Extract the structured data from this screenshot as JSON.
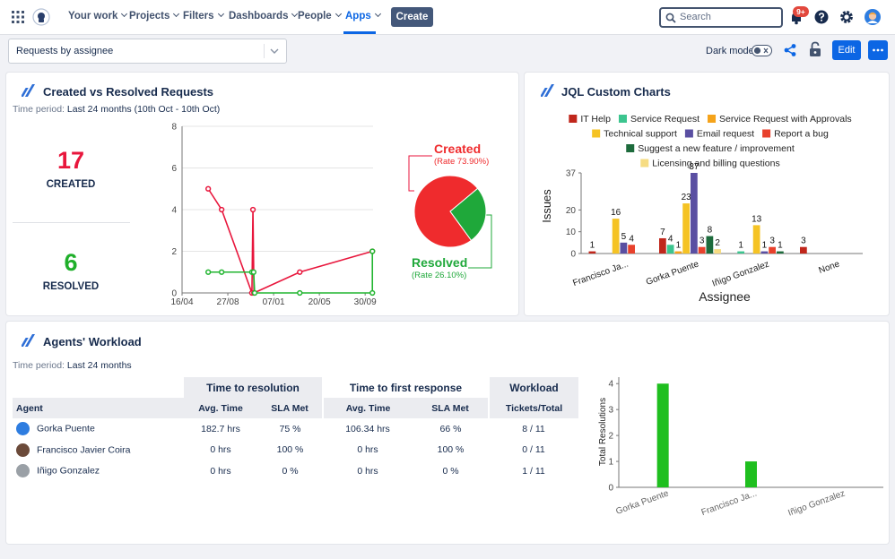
{
  "nav": {
    "items": [
      "Your work",
      "Projects",
      "Filters",
      "Dashboards",
      "People",
      "Apps"
    ],
    "create": "Create",
    "search": "Search",
    "badge": "9+"
  },
  "toolbar": {
    "dashboard": "Requests by assignee",
    "dark_mode": "Dark mode",
    "edit": "Edit"
  },
  "panels": [
    {
      "title": "Created vs Resolved Requests",
      "period_label": "Time period:",
      "period": "Last 24 months (10th Oct - 10th Oct)",
      "stats": [
        {
          "value": 17,
          "label": "CREATED"
        },
        {
          "value": 6,
          "label": "RESOLVED"
        }
      ]
    },
    {
      "title": "JQL Custom Charts"
    },
    {
      "title": "Agents' Workload",
      "period_label": "Time period:",
      "period": "Last 24 months"
    }
  ],
  "table": {
    "groups": [
      "Time to resolution",
      "Time to first response",
      "Workload"
    ],
    "header": [
      "Agent",
      "Avg. Time",
      "SLA Met",
      "Avg. Time",
      "SLA Met",
      "Tickets/Total"
    ],
    "rows": [
      [
        "Gorka Puente",
        "182.7 hrs",
        "75 %",
        "106.34 hrs",
        "66 %",
        "8 / 11"
      ],
      [
        "Francisco Javier Coira",
        "0 hrs",
        "100 %",
        "0 hrs",
        "100 %",
        "0 / 11"
      ],
      [
        "Iñigo Gonzalez",
        "0 hrs",
        "0 %",
        "0 hrs",
        "0 %",
        "1 / 11"
      ]
    ]
  },
  "chart_data": [
    {
      "type": "line",
      "xlim": [
        0,
        555
      ],
      "xticks": [
        {
          "value": 0,
          "label": "16/04"
        },
        {
          "value": 133,
          "label": "27/08"
        },
        {
          "value": 266,
          "label": "07/01"
        },
        {
          "value": 399,
          "label": "20/05"
        },
        {
          "value": 532,
          "label": "30/09"
        }
      ],
      "ylim": [
        0,
        8
      ],
      "yticks": [
        0,
        2,
        4,
        6,
        8
      ],
      "grid": true,
      "series": [
        {
          "color": "#e8163c",
          "x": [
            76,
            115,
            203,
            206,
            209,
            342,
            553
          ],
          "values": [
            5,
            4,
            0,
            4,
            0,
            1,
            2
          ]
        },
        {
          "color": "#22b530",
          "x": [
            76,
            115,
            203,
            208,
            211,
            342,
            553,
            553
          ],
          "values": [
            1,
            1,
            1,
            1,
            0,
            0,
            0,
            2
          ]
        }
      ]
    },
    {
      "type": "pie",
      "categories": [
        "Created",
        "Resolved"
      ],
      "values": [
        73.9,
        26.1
      ],
      "value_labels": [
        "(Rate 73.90%)",
        "(Rate 26.10%)"
      ],
      "colors": [
        "#ef2b2d",
        "#1fa83a"
      ]
    },
    {
      "type": "bar",
      "categories": [
        "Francisco Ja...",
        "Gorka Puente",
        "Iñigo Gonzalez",
        "None"
      ],
      "xlabel": "Assignee",
      "ylabel": "Issues",
      "ylim": [
        0,
        37
      ],
      "yticks": [
        0,
        10,
        20,
        37
      ],
      "grid": false,
      "legend": "top",
      "series": [
        {
          "name": "IT Help",
          "color": "#c0261b",
          "values": [
            1,
            7,
            null,
            3
          ]
        },
        {
          "name": "Service Request",
          "color": "#3cc58f",
          "values": [
            null,
            4,
            1,
            null
          ]
        },
        {
          "name": "Service Request with Approvals",
          "color": "#f5a31a",
          "values": [
            null,
            1,
            null,
            null
          ]
        },
        {
          "name": "Technical support",
          "color": "#f5c324",
          "values": [
            16,
            23,
            13,
            null
          ]
        },
        {
          "name": "Email request",
          "color": "#5a4fa2",
          "values": [
            5,
            37,
            1,
            null
          ]
        },
        {
          "name": "Report a bug",
          "color": "#e8412c",
          "values": [
            4,
            3,
            3,
            null
          ]
        },
        {
          "name": "Suggest a new feature / improvement",
          "color": "#1d6b3c",
          "values": [
            null,
            8,
            1,
            null
          ]
        },
        {
          "name": "Licensing and billing questions",
          "color": "#f6dc82",
          "values": [
            null,
            2,
            null,
            null
          ]
        }
      ]
    },
    {
      "type": "bar",
      "categories": [
        "Gorka Puente",
        "Francisco Ja...",
        "Iñigo Gonzalez"
      ],
      "ylabel": "Total Resolutions",
      "values": [
        4,
        1,
        0
      ],
      "color": "#1fbf1f",
      "ylim": [
        0,
        4.25
      ],
      "yticks": [
        0,
        1,
        2,
        3,
        4
      ],
      "grid": false
    }
  ]
}
